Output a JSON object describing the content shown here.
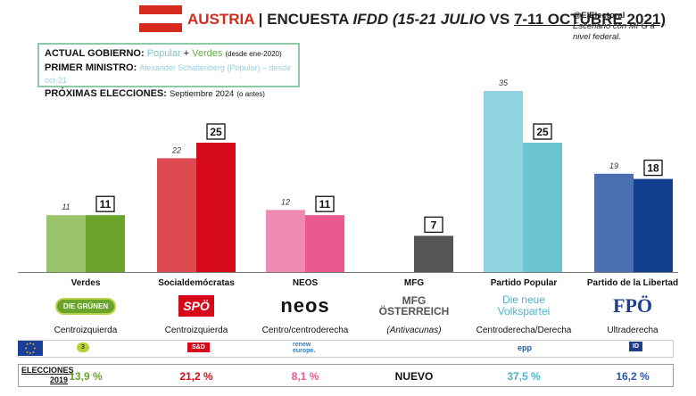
{
  "header": {
    "country": "AUSTRIA",
    "separator": " | ",
    "poll_prefix": "ENCUESTA ",
    "pollster": "IFDD",
    "period1": "(15-21 JULIO",
    "vs": " VS ",
    "period2": "7-11 OCTUBRE 2021)",
    "handle": "@ElElectoral",
    "note": "Escenario con MFG a nivel federal."
  },
  "info": {
    "gov_label": "ACTUAL GOBIERNO:",
    "gov_popular": "Popular",
    "gov_plus": " + ",
    "gov_verdes": "Verdes",
    "gov_since": "(desde ene-2020)",
    "pm_label": "PRIMER MINISTRO:",
    "pm_value": "Alexander Schallenberg (Popular) – desde oct-21",
    "next_label": "PRÓXIMAS ELECCIONES:",
    "next_value": "Septiembre 2024",
    "next_note": "(o antes)"
  },
  "colors": {
    "flag_red": "#d52b1e",
    "verdes": "#6aa42a",
    "verdes_prev": "#9bc46b",
    "spo": "#d6091a",
    "spo_prev": "#dd4a52",
    "neos": "#e9588e",
    "neos_prev": "#f08ab2",
    "mfg": "#555558",
    "ovp": "#6cc4d3",
    "ovp_prev": "#8fd4e0",
    "fpo": "#143f8f",
    "fpo_prev": "#4a70b2"
  },
  "chart_data": {
    "type": "bar",
    "categories": [
      "Verdes",
      "Socialdemócratas",
      "NEOS",
      "MFG",
      "Partido Popular",
      "Partido de la Libertad"
    ],
    "series": [
      {
        "name": "15-21 JULIO",
        "values": [
          11,
          22,
          12,
          null,
          35,
          19
        ]
      },
      {
        "name": "7-11 OCTUBRE 2021",
        "values": [
          11,
          25,
          11,
          7,
          25,
          18
        ]
      }
    ],
    "ylim": [
      0,
      40
    ]
  },
  "parties": [
    {
      "name": "Verdes",
      "ideology": "Centroizquierda",
      "logo": "DIE GRÜNEN",
      "eu_group": "3",
      "result_2019": "13,9 %",
      "color": "#6aa42a"
    },
    {
      "name": "Socialdemócratas",
      "ideology": "Centroizquierda",
      "logo": "SPÖ",
      "eu_group": "S&D",
      "result_2019": "21,2 %",
      "color": "#d6091a"
    },
    {
      "name": "NEOS",
      "ideology": "Centro/centroderecha",
      "logo": "neos",
      "eu_group": "renew europe.",
      "result_2019": "8,1 %",
      "color": "#e9588e"
    },
    {
      "name": "MFG",
      "ideology": "(Antivacunas)",
      "logo": "MFG ÖSTERREICH",
      "eu_group": "",
      "result_2019": "NUEVO",
      "color": "#111111"
    },
    {
      "name": "Partido Popular",
      "ideology": "Centroderecha/Derecha",
      "logo": "Die neue Volkspartei",
      "eu_group": "epp",
      "result_2019": "37,5 %",
      "color": "#4fb3c8"
    },
    {
      "name": "Partido de la Libertad",
      "ideology": "Ultraderecha",
      "logo": "FPÖ",
      "eu_group": "ID",
      "result_2019": "16,2 %",
      "color": "#2a5aa8"
    }
  ],
  "elections": {
    "label": "ELECCIONES 2019"
  }
}
